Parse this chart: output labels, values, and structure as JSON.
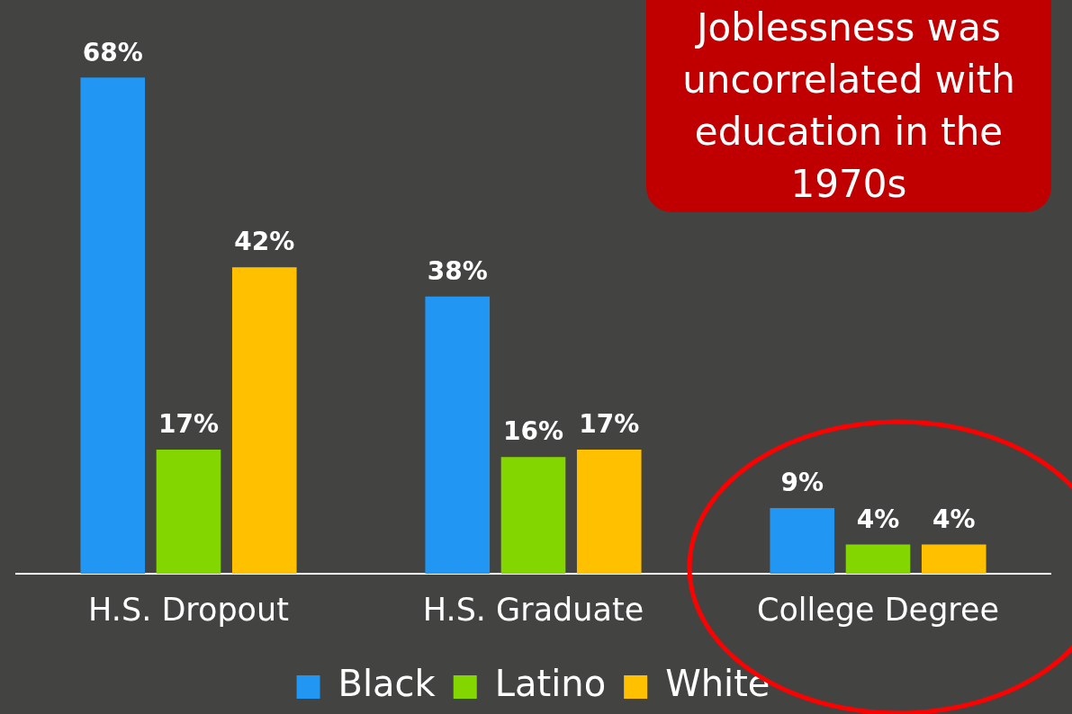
{
  "chart_data": {
    "type": "bar",
    "categories": [
      "H.S. Dropout",
      "H.S. Graduate",
      "College Degree"
    ],
    "series": [
      {
        "name": "Black",
        "color": "#2196f3",
        "values": [
          68,
          38,
          9
        ],
        "value_labels": [
          "68%",
          "38%",
          "9%"
        ]
      },
      {
        "name": "Latino",
        "color": "#84d600",
        "values": [
          17,
          16,
          4
        ],
        "value_labels": [
          "17%",
          "16%",
          "4%"
        ]
      },
      {
        "name": "White",
        "color": "#ffc000",
        "values": [
          42,
          17,
          4
        ],
        "value_labels": [
          "42%",
          "17%",
          "4%"
        ]
      }
    ],
    "annotations": [
      "Joblessness was uncorrelated with education in the 1970s"
    ],
    "grid": false,
    "legend": "bottom"
  }
}
